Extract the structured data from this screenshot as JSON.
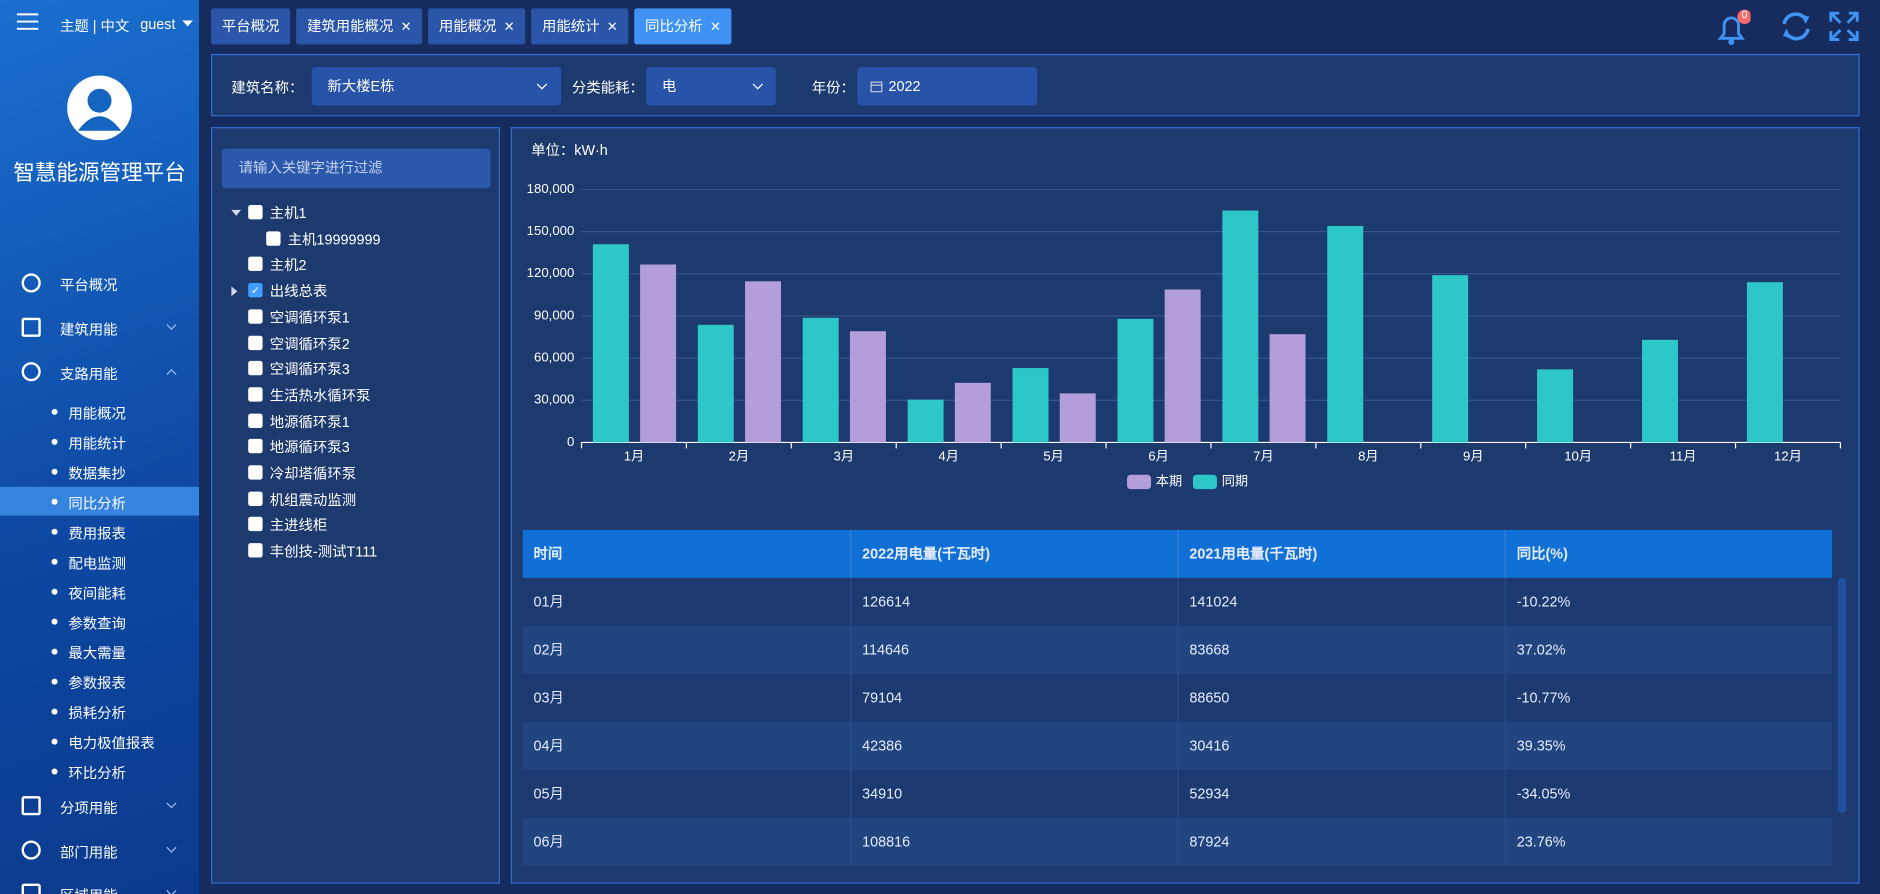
{
  "header": {
    "theme": "主题 | 中文",
    "user": "guest",
    "notifications": 0
  },
  "sidebar": {
    "title": "智慧能源管理平台",
    "menu": [
      {
        "label": "平台概况"
      },
      {
        "label": "建筑用能",
        "expanded": false
      },
      {
        "label": "支路用能",
        "expanded": true,
        "children": [
          {
            "label": "用能概况"
          },
          {
            "label": "用能统计"
          },
          {
            "label": "数据集抄"
          },
          {
            "label": "同比分析",
            "active": true
          },
          {
            "label": "费用报表"
          },
          {
            "label": "配电监测"
          },
          {
            "label": "夜间能耗"
          },
          {
            "label": "参数查询"
          },
          {
            "label": "最大需量"
          },
          {
            "label": "参数报表"
          },
          {
            "label": "损耗分析"
          },
          {
            "label": "电力极值报表"
          },
          {
            "label": "环比分析"
          }
        ]
      },
      {
        "label": "分项用能",
        "expanded": false
      },
      {
        "label": "部门用能",
        "expanded": false
      },
      {
        "label": "区域用能",
        "expanded": false
      }
    ]
  },
  "tabs": [
    {
      "label": "平台概况"
    },
    {
      "label": "建筑用能概况",
      "closable": true
    },
    {
      "label": "用能概况",
      "closable": true
    },
    {
      "label": "用能统计",
      "closable": true
    },
    {
      "label": "同比分析",
      "closable": true,
      "active": true
    }
  ],
  "filters": [
    {
      "label": "建筑名称：",
      "value": "新大楼E栋"
    },
    {
      "label": "分类能耗：",
      "value": "电"
    },
    {
      "label": "年份：",
      "value": "2022"
    }
  ],
  "tree": {
    "placeholder": "请输入关键字进行过滤",
    "nodes": [
      {
        "label": "主机1",
        "expanded": true,
        "checked": false,
        "children": [
          {
            "label": "主机19999999",
            "checked": false
          }
        ]
      },
      {
        "label": "主机2",
        "checked": false
      },
      {
        "label": "出线总表",
        "expanded": false,
        "checked": true
      },
      {
        "label": "空调循环泵1",
        "checked": false
      },
      {
        "label": "空调循环泵2",
        "checked": false
      },
      {
        "label": "空调循环泵3",
        "checked": false
      },
      {
        "label": "生活热水循环泵",
        "checked": false
      },
      {
        "label": "地源循环泵1",
        "checked": false
      },
      {
        "label": "地源循环泵3",
        "checked": false
      },
      {
        "label": "冷却塔循环泵",
        "checked": false
      },
      {
        "label": "机组震动监测",
        "checked": false
      },
      {
        "label": "主进线柜",
        "checked": false
      },
      {
        "label": "丰创技-测试T111",
        "checked": false
      }
    ]
  },
  "chart_data": {
    "type": "bar",
    "subtitle": "单位：kW·h",
    "categories": [
      "1月",
      "2月",
      "3月",
      "4月",
      "5月",
      "6月",
      "7月",
      "8月",
      "9月",
      "10月",
      "11月",
      "12月"
    ],
    "series": [
      {
        "name": "本期",
        "color": "#b39ddb",
        "values": [
          126614,
          114646,
          79104,
          42386,
          34910,
          108816,
          77000,
          null,
          null,
          null,
          null,
          null
        ]
      },
      {
        "name": "同期",
        "color": "#2ec7c9",
        "values": [
          141024,
          83668,
          88650,
          30416,
          52934,
          87924,
          165000,
          154000,
          119000,
          52000,
          73000,
          114000
        ]
      }
    ],
    "ylim": [
      0,
      180000
    ],
    "yticks": [
      0,
      {
        "value": 30000,
        "label": "30,000"
      },
      {
        "value": 60000,
        "label": "60,000"
      },
      {
        "value": 90000,
        "label": "90,000"
      },
      {
        "value": 120000,
        "label": "120,000"
      },
      {
        "value": 150000,
        "label": "150,000"
      },
      {
        "value": 180000,
        "label": "180,000"
      }
    ],
    "grid": true,
    "legend": "bottom"
  },
  "table": {
    "header": [
      "时间",
      "2022用电量(千瓦时)",
      "2021用电量(千瓦时)",
      "同比(%)"
    ],
    "rows": [
      [
        "01月",
        "126614",
        "141024",
        "-10.22%"
      ],
      [
        "02月",
        "114646",
        "83668",
        "37.02%"
      ],
      [
        "03月",
        "79104",
        "88650",
        "-10.77%"
      ],
      [
        "04月",
        "42386",
        "30416",
        "39.35%"
      ],
      [
        "05月",
        "34910",
        "52934",
        "-34.05%"
      ],
      [
        "06月",
        "108816",
        "87924",
        "23.76%"
      ]
    ]
  }
}
